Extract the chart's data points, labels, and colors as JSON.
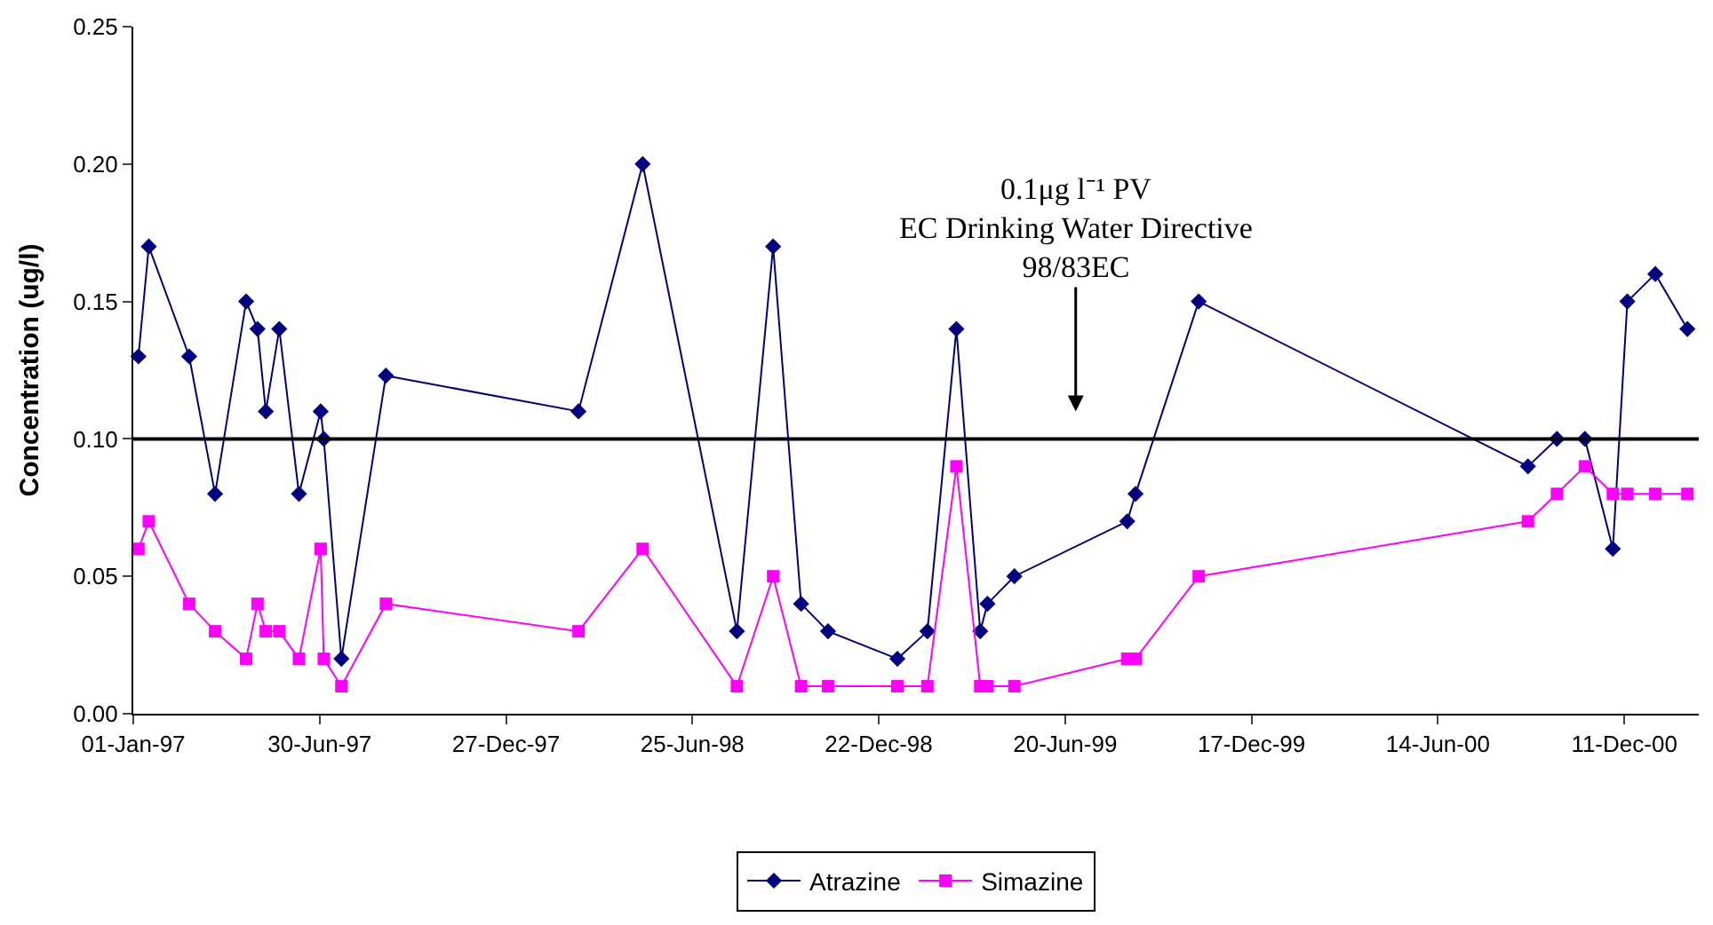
{
  "chart_data": {
    "type": "line",
    "ylabel": "Concentration (ug/l)",
    "x": [
      "1997-01-06",
      "1997-01-16",
      "1997-02-24",
      "1997-03-21",
      "1997-04-20",
      "1997-05-01",
      "1997-05-09",
      "1997-05-22",
      "1997-06-10",
      "1997-07-01",
      "1997-07-04",
      "1997-07-21",
      "1997-09-02",
      "1998-03-07",
      "1998-05-08",
      "1998-08-07",
      "1998-09-11",
      "1998-10-08",
      "1998-11-03",
      "1999-01-09",
      "1999-02-07",
      "1999-03-07",
      "1999-03-30",
      "1999-04-06",
      "1999-05-02",
      "1999-08-19",
      "1999-08-27",
      "1999-10-27",
      "2000-09-09",
      "2000-10-07",
      "2000-11-03",
      "2000-11-30",
      "2000-12-14",
      "2001-01-10",
      "2001-02-10"
    ],
    "series": [
      {
        "name": "Atrazine",
        "color": "#000080",
        "marker": "diamond",
        "values": [
          0.13,
          0.17,
          0.13,
          0.08,
          0.15,
          0.14,
          0.11,
          0.14,
          0.08,
          0.11,
          0.1,
          0.02,
          0.123,
          0.11,
          0.2,
          0.03,
          0.17,
          0.04,
          0.03,
          0.02,
          0.03,
          0.14,
          0.03,
          0.04,
          0.05,
          0.07,
          0.08,
          0.15,
          0.09,
          0.1,
          0.1,
          0.06,
          0.15,
          0.16,
          0.14
        ]
      },
      {
        "name": "Simazine",
        "color": "#ff00ff",
        "marker": "square",
        "values": [
          0.06,
          0.07,
          0.04,
          0.03,
          0.02,
          0.04,
          0.03,
          0.03,
          0.02,
          0.06,
          0.02,
          0.01,
          0.04,
          0.03,
          0.06,
          0.01,
          0.05,
          0.01,
          0.01,
          0.01,
          0.01,
          0.09,
          0.01,
          0.01,
          0.01,
          0.02,
          0.02,
          0.05,
          0.07,
          0.08,
          0.09,
          0.08,
          0.08,
          0.08,
          0.08
        ]
      }
    ],
    "xlim": [
      "1997-01-01",
      "2001-02-21"
    ],
    "xticks": [
      {
        "value": "1997-01-01",
        "label": "01-Jan-97"
      },
      {
        "value": "1997-06-30",
        "label": "30-Jun-97"
      },
      {
        "value": "1997-12-27",
        "label": "27-Dec-97"
      },
      {
        "value": "1998-06-25",
        "label": "25-Jun-98"
      },
      {
        "value": "1998-12-22",
        "label": "22-Dec-98"
      },
      {
        "value": "1999-06-20",
        "label": "20-Jun-99"
      },
      {
        "value": "1999-12-17",
        "label": "17-Dec-99"
      },
      {
        "value": "2000-06-14",
        "label": "14-Jun-00"
      },
      {
        "value": "2000-12-11",
        "label": "11-Dec-00"
      }
    ],
    "ylim": [
      0,
      0.25
    ],
    "yticks": [
      {
        "value": 0,
        "label": "0.00"
      },
      {
        "value": 0.05,
        "label": "0.05"
      },
      {
        "value": 0.1,
        "label": "0.10"
      },
      {
        "value": 0.15,
        "label": "0.15"
      },
      {
        "value": 0.2,
        "label": "0.20"
      },
      {
        "value": 0.25,
        "label": "0.25"
      }
    ],
    "ref_lines": [
      {
        "axis": "y",
        "value": 0.1,
        "color": "#000000",
        "line_style": "solid"
      }
    ],
    "annotations": [
      "0.1μg l⁻¹ PV\nEC Drinking Water Directive\n98/83EC"
    ],
    "grid": false,
    "legend": "bottom",
    "line_style": "solid"
  }
}
